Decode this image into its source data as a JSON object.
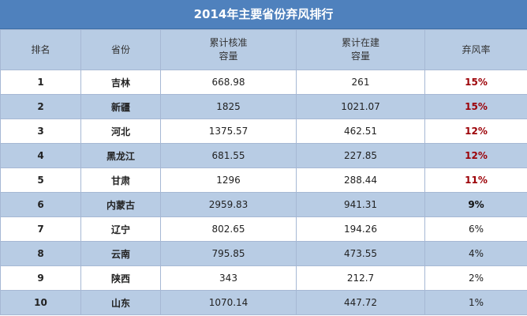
{
  "title": "2014年主要省份弃风排行",
  "columns": {
    "rank": "排名",
    "province": "省份",
    "approved_line1": "累计核准",
    "approved_line2": "容量",
    "building_line1": "累计在建",
    "building_line2": "容量",
    "curtail_rate": "弃风率"
  },
  "rows": [
    {
      "rank": "1",
      "province": "吉林",
      "approved": "668.98",
      "building": "261",
      "rate": "15%"
    },
    {
      "rank": "2",
      "province": "新疆",
      "approved": "1825",
      "building": "1021.07",
      "rate": "15%"
    },
    {
      "rank": "3",
      "province": "河北",
      "approved": "1375.57",
      "building": "462.51",
      "rate": "12%"
    },
    {
      "rank": "4",
      "province": "黑龙江",
      "approved": "681.55",
      "building": "227.85",
      "rate": "12%"
    },
    {
      "rank": "5",
      "province": "甘肃",
      "approved": "1296",
      "building": "288.44",
      "rate": "11%"
    },
    {
      "rank": "6",
      "province": "内蒙古",
      "approved": "2959.83",
      "building": "941.31",
      "rate": "9%"
    },
    {
      "rank": "7",
      "province": "辽宁",
      "approved": "802.65",
      "building": "194.26",
      "rate": "6%"
    },
    {
      "rank": "8",
      "province": "云南",
      "approved": "795.85",
      "building": "473.55",
      "rate": "4%"
    },
    {
      "rank": "9",
      "province": "陕西",
      "approved": "343",
      "building": "212.7",
      "rate": "2%"
    },
    {
      "rank": "10",
      "province": "山东",
      "approved": "1070.14",
      "building": "447.72",
      "rate": "1%"
    }
  ],
  "colors": {
    "title_bg": "#4f81bd",
    "header_bg": "#b8cce4",
    "alt_row_bg": "#b8cce4",
    "high_rate_text": "#9c0006"
  }
}
